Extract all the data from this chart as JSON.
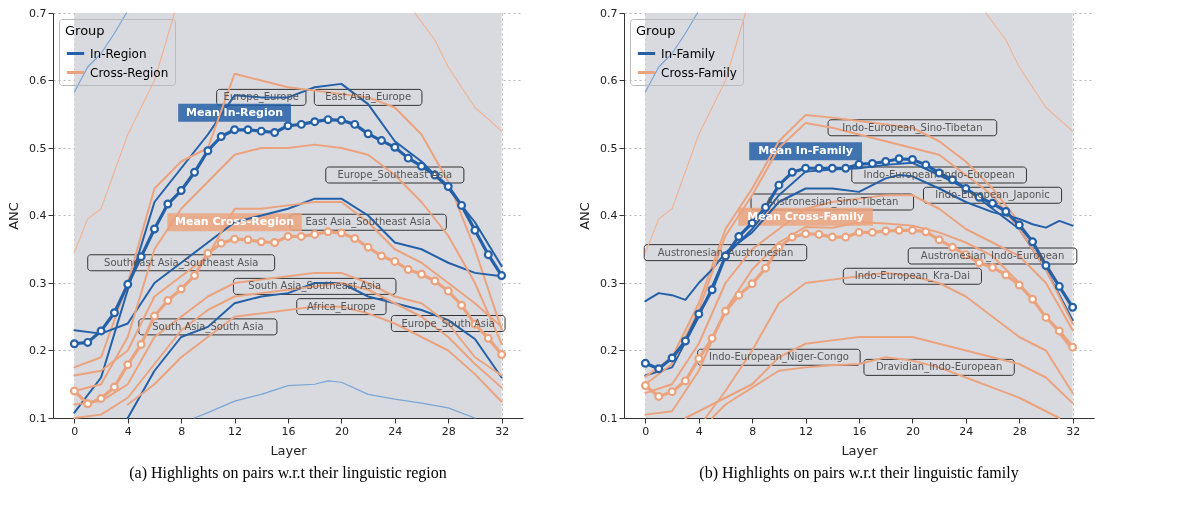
{
  "chart_data": [
    {
      "type": "line",
      "xlabel": "Layer",
      "ylabel": "ANC",
      "legend_title": "Group",
      "legend": "top left",
      "grid": true,
      "xlim": [
        -1.6,
        33.6
      ],
      "ylim": [
        0.1,
        0.7
      ],
      "xticks": [
        0,
        4,
        8,
        12,
        16,
        20,
        24,
        28,
        32
      ],
      "yticks": [
        0.1,
        0.2,
        0.3,
        0.4,
        0.5,
        0.6,
        0.7
      ],
      "bands": [
        {
          "axis": "x",
          "from": 0,
          "to": 32,
          "color": "#d9dae0"
        }
      ],
      "series": [
        {
          "name": "In-Region",
          "color": "#2460a7",
          "x": [
            0,
            2,
            4,
            6,
            8,
            10,
            12,
            14,
            16,
            18,
            20,
            22,
            24,
            26,
            28,
            30,
            32
          ],
          "values": [
            0.108,
            0.16,
            0.29,
            0.42,
            0.47,
            0.52,
            0.578,
            0.575,
            0.575,
            0.59,
            0.595,
            0.565,
            0.51,
            0.48,
            0.44,
            0.39,
            0.325
          ]
        },
        {
          "color": "#2460a7",
          "x": [
            0,
            2,
            4,
            6,
            8,
            10,
            12,
            14,
            16,
            18,
            20,
            22,
            24,
            26,
            28,
            30,
            32
          ],
          "values": [
            0.23,
            0.225,
            0.24,
            0.3,
            0.33,
            0.36,
            0.39,
            0.4,
            0.41,
            0.425,
            0.425,
            0.4,
            0.36,
            0.35,
            0.33,
            0.315,
            0.31
          ]
        },
        {
          "color": "#2460a7",
          "x": [
            4,
            6,
            8,
            10,
            12,
            14,
            16,
            18,
            20,
            22,
            24,
            26,
            28,
            30,
            32
          ],
          "values": [
            0.1,
            0.17,
            0.22,
            0.235,
            0.27,
            0.28,
            0.285,
            0.3,
            0.3,
            0.28,
            0.27,
            0.26,
            0.245,
            0.217,
            0.16
          ]
        },
        {
          "name": "Cross-Region",
          "color": "#eba37e",
          "x": [
            0,
            2,
            4,
            6,
            8,
            10,
            12,
            14,
            16,
            18,
            20,
            22,
            24,
            26,
            28,
            30,
            32
          ],
          "values": [
            0.175,
            0.19,
            0.3,
            0.44,
            0.48,
            0.5,
            0.61,
            0.6,
            0.59,
            0.585,
            0.58,
            0.575,
            0.56,
            0.52,
            0.45,
            0.35,
            0.231
          ]
        },
        {
          "color": "#eba37e",
          "x": [
            0,
            2,
            4,
            6,
            8,
            10,
            12,
            14,
            16,
            18,
            20,
            22,
            24,
            26,
            28,
            30,
            32
          ],
          "values": [
            0.14,
            0.15,
            0.22,
            0.35,
            0.41,
            0.45,
            0.49,
            0.5,
            0.5,
            0.505,
            0.5,
            0.49,
            0.46,
            0.42,
            0.37,
            0.3,
            0.21
          ]
        },
        {
          "color": "#eba37e",
          "x": [
            0,
            2,
            4,
            6,
            8,
            10,
            12,
            14,
            16,
            18,
            20,
            22,
            24,
            26,
            28,
            30,
            32
          ],
          "values": [
            0.163,
            0.17,
            0.2,
            0.28,
            0.31,
            0.34,
            0.41,
            0.41,
            0.415,
            0.42,
            0.42,
            0.39,
            0.35,
            0.33,
            0.3,
            0.27,
            0.235
          ]
        },
        {
          "color": "#eba37e",
          "x": [
            0,
            2,
            4,
            6,
            8,
            10,
            12,
            14,
            16,
            18,
            20,
            22,
            24,
            26,
            28,
            30,
            32
          ],
          "values": [
            0.12,
            0.125,
            0.15,
            0.22,
            0.25,
            0.28,
            0.3,
            0.305,
            0.31,
            0.315,
            0.315,
            0.3,
            0.28,
            0.27,
            0.24,
            0.19,
            0.163
          ]
        },
        {
          "color": "#eba37e",
          "x": [
            0,
            2,
            4,
            6,
            8,
            10,
            12,
            14,
            16,
            18,
            20,
            22,
            24,
            26,
            28,
            30,
            32
          ],
          "values": [
            0.1,
            0.105,
            0.13,
            0.18,
            0.23,
            0.26,
            0.28,
            0.285,
            0.29,
            0.295,
            0.3,
            0.29,
            0.27,
            0.25,
            0.22,
            0.18,
            0.145
          ]
        },
        {
          "color": "#eba37e",
          "x": [
            4,
            6,
            8,
            10,
            12,
            14,
            16,
            18,
            20,
            22,
            24,
            26,
            28,
            30,
            32
          ],
          "values": [
            0.12,
            0.15,
            0.19,
            0.22,
            0.25,
            0.255,
            0.26,
            0.265,
            0.265,
            0.255,
            0.24,
            0.22,
            0.2,
            0.165,
            0.124
          ]
        },
        {
          "color": "#7aa5d6",
          "x": [
            0,
            1,
            2,
            3,
            3.9
          ],
          "values": [
            0.583,
            0.62,
            0.64,
            0.67,
            0.7
          ]
        },
        {
          "color": "#7aa5d6",
          "x": [
            9,
            10,
            12,
            14,
            16,
            18,
            19,
            20,
            22,
            24,
            26,
            28,
            30
          ],
          "values": [
            0.1,
            0.108,
            0.125,
            0.135,
            0.148,
            0.15,
            0.155,
            0.153,
            0.135,
            0.128,
            0.122,
            0.115,
            0.1
          ]
        },
        {
          "color": "#f0b394",
          "x": [
            0,
            1,
            2,
            4,
            6,
            7.5
          ],
          "values": [
            0.345,
            0.395,
            0.41,
            0.52,
            0.6,
            0.7
          ]
        },
        {
          "color": "#f0b394",
          "x": [
            25.5,
            27,
            28,
            30,
            32
          ],
          "values": [
            0.7,
            0.66,
            0.62,
            0.56,
            0.525
          ]
        },
        {
          "name": "Mean In-Region",
          "color": "#2460a7",
          "marker": "circle",
          "x": [
            0,
            1,
            2,
            3,
            4,
            5,
            6,
            7,
            8,
            9,
            10,
            11,
            12,
            13,
            14,
            15,
            16,
            17,
            18,
            19,
            20,
            21,
            22,
            23,
            24,
            25,
            26,
            27,
            28,
            29,
            30,
            31,
            32
          ],
          "values": [
            0.21,
            0.212,
            0.229,
            0.256,
            0.298,
            0.339,
            0.38,
            0.417,
            0.437,
            0.464,
            0.496,
            0.517,
            0.527,
            0.527,
            0.525,
            0.523,
            0.533,
            0.535,
            0.539,
            0.542,
            0.541,
            0.535,
            0.521,
            0.511,
            0.501,
            0.485,
            0.473,
            0.46,
            0.443,
            0.415,
            0.378,
            0.342,
            0.311
          ]
        },
        {
          "name": "Mean Cross-Region",
          "color": "#eba37e",
          "marker": "circle",
          "x": [
            0,
            1,
            2,
            3,
            4,
            5,
            6,
            7,
            8,
            9,
            10,
            11,
            12,
            13,
            14,
            15,
            16,
            17,
            18,
            19,
            20,
            21,
            22,
            23,
            24,
            25,
            26,
            27,
            28,
            29,
            30,
            31,
            32
          ],
          "values": [
            0.14,
            0.121,
            0.129,
            0.146,
            0.179,
            0.209,
            0.251,
            0.274,
            0.291,
            0.311,
            0.344,
            0.359,
            0.365,
            0.364,
            0.361,
            0.36,
            0.369,
            0.369,
            0.372,
            0.376,
            0.374,
            0.366,
            0.353,
            0.34,
            0.332,
            0.32,
            0.313,
            0.303,
            0.288,
            0.267,
            0.239,
            0.218,
            0.194
          ]
        }
      ],
      "annotations": [
        {
          "text": "Europe_Europe",
          "x": 14,
          "y": 0.575
        },
        {
          "text": "Southeast Asia_Southeast Asia",
          "x": 8,
          "y": 0.33
        },
        {
          "text": "South Asia_South Asia",
          "x": 10,
          "y": 0.235
        },
        {
          "text": "East Asia_Europe",
          "x": 22,
          "y": 0.575
        },
        {
          "text": "Europe_Southeast Asia",
          "x": 24,
          "y": 0.46
        },
        {
          "text": "East Asia_Southeast Asia",
          "x": 22,
          "y": 0.39
        },
        {
          "text": "Europe_South Asia",
          "x": 28,
          "y": 0.24
        },
        {
          "text": "South Asia_Southeast Asia",
          "x": 18,
          "y": 0.295
        },
        {
          "text": "Africa_Europe",
          "x": 20,
          "y": 0.265
        },
        "(a) Highlights on pairs w.r.t their linguistic region"
      ]
    },
    {
      "type": "line",
      "xlabel": "Layer",
      "ylabel": "ANC",
      "legend_title": "Group",
      "legend": "top left",
      "grid": true,
      "xlim": [
        -1.6,
        33.6
      ],
      "ylim": [
        0.1,
        0.7
      ],
      "xticks": [
        0,
        4,
        8,
        12,
        16,
        20,
        24,
        28,
        32
      ],
      "yticks": [
        0.1,
        0.2,
        0.3,
        0.4,
        0.5,
        0.6,
        0.7
      ],
      "bands": [
        {
          "axis": "x",
          "from": 0,
          "to": 32,
          "color": "#d9dae0"
        }
      ],
      "series": [
        {
          "name": "In-Family",
          "color": "#2460a7",
          "x": [
            0,
            2,
            4,
            6,
            8,
            10,
            12,
            14,
            16,
            18,
            20,
            22,
            24,
            26,
            28,
            30,
            32
          ],
          "values": [
            0.163,
            0.175,
            0.25,
            0.34,
            0.38,
            0.43,
            0.465,
            0.468,
            0.47,
            0.475,
            0.478,
            0.46,
            0.44,
            0.41,
            0.38,
            0.32,
            0.245
          ]
        },
        {
          "color": "#2460a7",
          "x": [
            0,
            1,
            2,
            3,
            4,
            5,
            6,
            8,
            10,
            12,
            14,
            16,
            18,
            19,
            20,
            22,
            24,
            26,
            28,
            29,
            30,
            31,
            32
          ],
          "values": [
            0.273,
            0.285,
            0.282,
            0.275,
            0.3,
            0.32,
            0.345,
            0.375,
            0.42,
            0.44,
            0.44,
            0.435,
            0.455,
            0.46,
            0.458,
            0.44,
            0.42,
            0.405,
            0.395,
            0.387,
            0.382,
            0.392,
            0.385
          ]
        },
        {
          "name": "Cross-Family",
          "color": "#eba37e",
          "x": [
            0,
            2,
            4,
            6,
            8,
            10,
            12,
            14,
            16,
            18,
            20,
            22,
            24,
            26,
            28,
            30,
            32
          ],
          "values": [
            0.161,
            0.19,
            0.27,
            0.38,
            0.44,
            0.51,
            0.549,
            0.545,
            0.54,
            0.535,
            0.53,
            0.51,
            0.48,
            0.44,
            0.39,
            0.33,
            0.26
          ]
        },
        {
          "color": "#eba37e",
          "x": [
            0,
            2,
            4,
            6,
            8,
            10,
            12,
            14,
            16,
            18,
            20,
            22,
            24,
            26,
            28,
            30,
            32
          ],
          "values": [
            0.15,
            0.18,
            0.26,
            0.37,
            0.43,
            0.5,
            0.537,
            0.53,
            0.52,
            0.51,
            0.5,
            0.49,
            0.46,
            0.43,
            0.38,
            0.32,
            0.24
          ]
        },
        {
          "color": "#eba37e",
          "x": [
            0,
            2,
            4,
            6,
            8,
            10,
            12,
            14,
            16,
            18,
            20,
            22,
            24,
            26,
            28,
            30,
            32
          ],
          "values": [
            0.137,
            0.15,
            0.21,
            0.3,
            0.35,
            0.38,
            0.41,
            0.42,
            0.425,
            0.43,
            0.43,
            0.41,
            0.38,
            0.36,
            0.34,
            0.3,
            0.23
          ]
        },
        {
          "color": "#eba37e",
          "x": [
            0,
            2,
            4,
            6,
            8,
            10,
            12,
            14,
            16,
            18,
            20,
            22,
            24,
            26,
            28,
            30,
            32
          ],
          "values": [
            0.105,
            0.11,
            0.17,
            0.26,
            0.32,
            0.36,
            0.383,
            0.382,
            0.39,
            0.388,
            0.385,
            0.375,
            0.36,
            0.34,
            0.3,
            0.25,
            0.2
          ]
        },
        {
          "color": "#eba37e",
          "x": [
            4.5,
            6,
            8,
            10,
            12,
            14,
            16,
            18,
            20,
            22,
            24,
            26,
            28,
            30,
            32
          ],
          "values": [
            0.1,
            0.14,
            0.2,
            0.27,
            0.3,
            0.305,
            0.31,
            0.315,
            0.31,
            0.3,
            0.28,
            0.25,
            0.22,
            0.2,
            0.137
          ]
        },
        {
          "color": "#eba37e",
          "x": [
            3,
            4,
            6,
            8,
            10,
            12,
            14,
            16,
            18,
            20,
            22,
            24,
            26,
            28,
            30,
            32
          ],
          "values": [
            0.1,
            0.11,
            0.13,
            0.15,
            0.19,
            0.21,
            0.215,
            0.22,
            0.22,
            0.22,
            0.21,
            0.2,
            0.19,
            0.18,
            0.16,
            0.122
          ]
        },
        {
          "color": "#eba37e",
          "x": [
            5,
            6,
            8,
            10,
            12,
            14,
            16,
            18,
            20,
            22,
            24,
            26,
            28,
            30,
            31
          ],
          "values": [
            0.1,
            0.12,
            0.145,
            0.17,
            0.175,
            0.178,
            0.18,
            0.19,
            0.185,
            0.175,
            0.16,
            0.145,
            0.13,
            0.11,
            0.1
          ]
        },
        {
          "color": "#7aa5d6",
          "x": [
            0,
            1,
            2,
            3,
            3.9
          ],
          "values": [
            0.583,
            0.62,
            0.64,
            0.67,
            0.7
          ]
        },
        {
          "color": "#f0b394",
          "x": [
            0,
            1,
            2,
            4,
            6,
            7.5
          ],
          "values": [
            0.345,
            0.395,
            0.41,
            0.52,
            0.6,
            0.7
          ]
        },
        {
          "color": "#f0b394",
          "x": [
            25.5,
            27,
            28,
            30,
            32
          ],
          "values": [
            0.7,
            0.66,
            0.62,
            0.56,
            0.525
          ]
        },
        {
          "name": "Mean In-Family",
          "color": "#2460a7",
          "marker": "circle",
          "x": [
            0,
            1,
            2,
            3,
            4,
            5,
            6,
            7,
            8,
            9,
            10,
            11,
            12,
            13,
            14,
            15,
            16,
            17,
            18,
            19,
            20,
            21,
            22,
            23,
            24,
            25,
            26,
            27,
            28,
            29,
            30,
            31,
            32
          ],
          "values": [
            0.181,
            0.173,
            0.189,
            0.214,
            0.254,
            0.29,
            0.34,
            0.369,
            0.389,
            0.412,
            0.445,
            0.464,
            0.47,
            0.47,
            0.47,
            0.47,
            0.476,
            0.477,
            0.48,
            0.484,
            0.483,
            0.475,
            0.463,
            0.453,
            0.44,
            0.427,
            0.418,
            0.406,
            0.386,
            0.361,
            0.326,
            0.295,
            0.264
          ]
        },
        {
          "name": "Mean Cross-Family",
          "color": "#eba37e",
          "marker": "circle",
          "x": [
            0,
            1,
            2,
            3,
            4,
            5,
            6,
            7,
            8,
            9,
            10,
            11,
            12,
            13,
            14,
            15,
            16,
            17,
            18,
            19,
            20,
            21,
            22,
            23,
            24,
            25,
            26,
            27,
            28,
            29,
            30,
            31,
            32
          ],
          "values": [
            0.148,
            0.132,
            0.139,
            0.155,
            0.188,
            0.218,
            0.258,
            0.282,
            0.299,
            0.322,
            0.353,
            0.368,
            0.373,
            0.372,
            0.368,
            0.368,
            0.375,
            0.375,
            0.377,
            0.378,
            0.378,
            0.376,
            0.364,
            0.353,
            0.342,
            0.33,
            0.323,
            0.312,
            0.297,
            0.276,
            0.249,
            0.229,
            0.205
          ]
        }
      ],
      "annotations": [
        {
          "text": "Indo-European_Indo-European",
          "x": 22,
          "y": 0.46
        },
        {
          "text": "Austronesian_Austronesian",
          "x": 6,
          "y": 0.345
        },
        {
          "text": "Indo-European_Sino-Tibetan",
          "x": 20,
          "y": 0.53
        },
        {
          "text": "Indo-European_Japonic",
          "x": 26,
          "y": 0.43
        },
        {
          "text": "Austronesian_Sino-Tibetan",
          "x": 14,
          "y": 0.42
        },
        {
          "text": "Austronesian_Indo-European",
          "x": 26,
          "y": 0.34
        },
        {
          "text": "Indo-European_Kra-Dai",
          "x": 20,
          "y": 0.31
        },
        {
          "text": "Indo-European_Niger-Congo",
          "x": 10,
          "y": 0.19
        },
        {
          "text": "Dravidian_Indo-European",
          "x": 22,
          "y": 0.175
        },
        "(b) Highlights on pairs w.r.t their linguistic family"
      ]
    }
  ]
}
